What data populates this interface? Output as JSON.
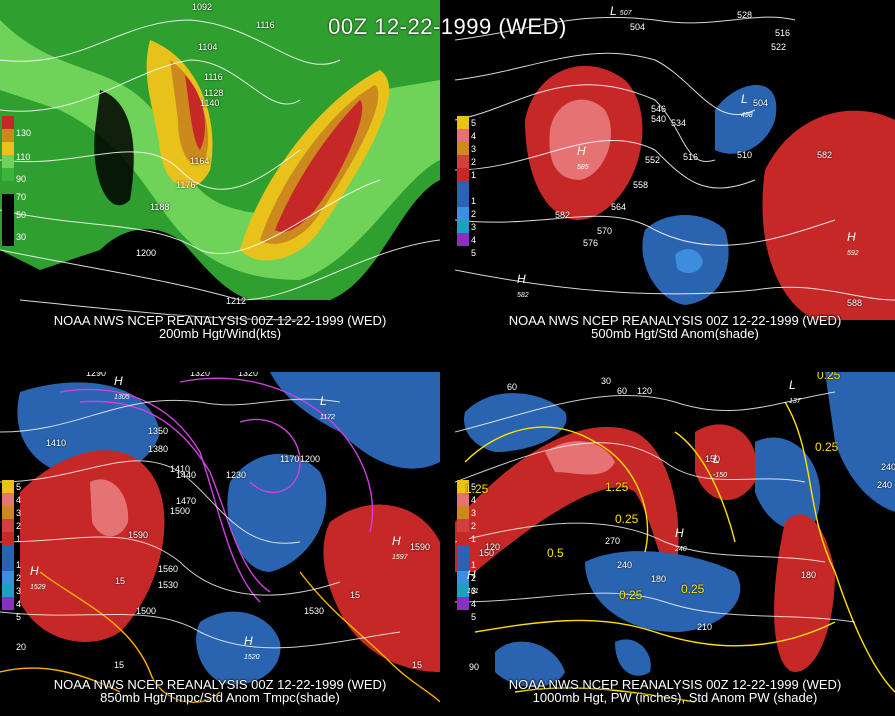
{
  "title": "00Z 12-22-1999 (WED)",
  "colors": {
    "red": "#c62828",
    "lightred": "#e57373",
    "orange": "#cc8a1e",
    "yellow": "#e8c21a",
    "green": "#3cb43c",
    "lightgreen": "#6fd35a",
    "blue": "#2a64b0",
    "lightblue": "#3e8ee0",
    "magenta": "#d040e0",
    "contour_yellow": "#ffe000"
  },
  "panels": [
    {
      "id": "p200",
      "caption_line1": "NOAA NWS NCEP REANALYSIS 00Z 12-22-1999 (WED)",
      "caption_line2": "200mb Hgt/Wind(kts)",
      "scale": [
        "130",
        "110",
        "90",
        "70",
        "50",
        "30"
      ],
      "contour_labels": [
        "1092",
        "1116",
        "1104",
        "1116",
        "1128",
        "1140",
        "1164",
        "1176",
        "1188",
        "1200",
        "1212"
      ]
    },
    {
      "id": "p500",
      "caption_line1": "NOAA NWS NCEP REANALYSIS 00Z 12-22-1999 (WED)",
      "caption_line2": "500mb Hgt/Std Anom(shade)",
      "scale": [
        "5",
        "4",
        "3",
        "2",
        "1",
        "1",
        "2",
        "3",
        "4",
        "5"
      ],
      "contour_labels": [
        "504",
        "528",
        "522",
        "516",
        "504",
        "546",
        "540",
        "534",
        "552",
        "510",
        "516",
        "558",
        "582",
        "564",
        "570",
        "576",
        "582",
        "588"
      ],
      "centers": [
        {
          "t": "L",
          "v": "507"
        },
        {
          "t": "H",
          "v": "585"
        },
        {
          "t": "L",
          "v": "498"
        },
        {
          "t": "H",
          "v": "592"
        },
        {
          "t": "H",
          "v": "582"
        }
      ]
    },
    {
      "id": "p850",
      "caption_line1": "NOAA NWS NCEP REANALYSIS 00Z 12-22-1999 (WED)",
      "caption_line2": "850mb Hgt/Tmpc/Std Anom Tmpc(shade)",
      "scale": [
        "5",
        "4",
        "3",
        "2",
        "1",
        "1",
        "2",
        "3",
        "4",
        "5"
      ],
      "contour_labels": [
        "1290",
        "1320",
        "1320",
        "1350",
        "1380",
        "1410",
        "1440",
        "1470",
        "1500",
        "1530",
        "1560",
        "1590",
        "1500",
        "1530",
        "1590",
        "1170",
        "1200",
        "1230",
        "1410",
        "15",
        "15",
        "15",
        "15",
        "20"
      ],
      "centers": [
        {
          "t": "H",
          "v": "1305"
        },
        {
          "t": "H",
          "v": "1529"
        },
        {
          "t": "H",
          "v": "1597"
        },
        {
          "t": "H",
          "v": "1520"
        },
        {
          "t": "L",
          "v": "1172"
        }
      ]
    },
    {
      "id": "p1000",
      "caption_line1": "NOAA NWS NCEP REANALYSIS 00Z 12-22-1999 (WED)",
      "caption_line2": "1000mb Hgt, PW (inches), Std Anom PW (shade)",
      "scale": [
        "5",
        "4",
        "3",
        "2",
        "1",
        "1",
        "2",
        "3",
        "4",
        "5"
      ],
      "contour_labels": [
        "60",
        "30",
        "60",
        "120",
        "0.25",
        "0.25",
        "1.25",
        "1.25",
        "0.5",
        "0.25",
        "0.25",
        "0.25",
        "240",
        "270",
        "240",
        "180",
        "210",
        "150",
        "120",
        "180",
        "240",
        "90",
        "150"
      ],
      "centers": [
        {
          "t": "L",
          "v": "137"
        },
        {
          "t": "H",
          "v": "161"
        },
        {
          "t": "L",
          "v": "-150"
        },
        {
          "t": "H",
          "v": "240"
        }
      ]
    }
  ]
}
